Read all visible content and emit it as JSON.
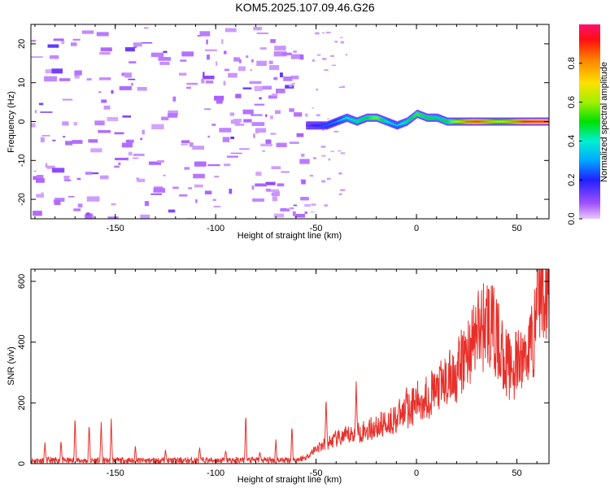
{
  "title": "KOM5.2025.107.09.46.G26",
  "colors": {
    "snr_line": "#e8302a",
    "axis": "#000000"
  },
  "chart_data": [
    {
      "type": "heatmap",
      "name": "spectrogram",
      "xlabel": "Height of straight line (km)",
      "ylabel": "Frequency (Hz)",
      "xlim": [
        -192,
        66
      ],
      "ylim": [
        -25,
        25
      ],
      "xticks": [
        -150,
        -100,
        -50,
        0,
        50
      ],
      "yticks": [
        -20,
        -10,
        0,
        10,
        20
      ],
      "colorbar": {
        "label": "Normalized spectral amplitude",
        "range": [
          0,
          1
        ],
        "ticks": [
          "0.0",
          "0.2",
          "0.4",
          "0.6",
          "0.8"
        ],
        "colormap": "rainbow (magenta-blue-cyan-green-yellow-red)"
      },
      "ridge": {
        "description": "spectral line near 0 Hz",
        "x": [
          -55,
          -50,
          -45,
          -40,
          -35,
          -30,
          -25,
          -20,
          -15,
          -10,
          -5,
          0,
          5,
          10,
          15,
          20,
          25,
          30,
          35,
          40,
          45,
          50,
          55,
          60,
          66
        ],
        "freq": [
          -1,
          -1,
          -1,
          0,
          1,
          0,
          1,
          1,
          0,
          -1,
          0,
          2,
          1,
          1,
          0,
          0,
          0,
          0,
          0,
          0,
          0,
          0,
          0,
          0,
          0
        ],
        "amplitude": [
          0.15,
          0.2,
          0.25,
          0.3,
          0.4,
          0.45,
          0.5,
          0.6,
          0.4,
          0.35,
          0.45,
          0.55,
          0.5,
          0.45,
          0.5,
          0.7,
          0.85,
          0.9,
          0.8,
          0.7,
          0.75,
          0.85,
          0.95,
          1.0,
          1.0
        ]
      }
    },
    {
      "type": "line",
      "name": "snr",
      "xlabel": "Height of straight line (km)",
      "ylabel": "SNR (v/v)",
      "xlim": [
        -192,
        66
      ],
      "ylim": [
        0,
        640
      ],
      "xticks": [
        -150,
        -100,
        -50,
        0,
        50
      ],
      "yticks": [
        0,
        200,
        400,
        600
      ],
      "trend": {
        "x": [
          -192,
          -120,
          -60,
          -55,
          -50,
          -40,
          -30,
          -20,
          -10,
          0,
          10,
          20,
          25,
          30,
          35,
          38,
          42,
          45,
          48,
          52,
          55,
          58,
          59,
          60,
          66
        ],
        "y": [
          10,
          10,
          12,
          20,
          50,
          80,
          100,
          120,
          150,
          200,
          240,
          300,
          360,
          430,
          470,
          440,
          380,
          330,
          310,
          340,
          370,
          420,
          440,
          610,
          610
        ]
      },
      "spikes": [
        {
          "x": -185,
          "y": 70
        },
        {
          "x": -177,
          "y": 80
        },
        {
          "x": -170,
          "y": 160
        },
        {
          "x": -163,
          "y": 135
        },
        {
          "x": -157,
          "y": 140
        },
        {
          "x": -152,
          "y": 150
        },
        {
          "x": -140,
          "y": 60
        },
        {
          "x": -125,
          "y": 50
        },
        {
          "x": -108,
          "y": 55
        },
        {
          "x": -95,
          "y": 45
        },
        {
          "x": -85,
          "y": 170
        },
        {
          "x": -78,
          "y": 40
        },
        {
          "x": -70,
          "y": 80
        },
        {
          "x": -62,
          "y": 130
        },
        {
          "x": -45,
          "y": 220
        },
        {
          "x": -30,
          "y": 275
        },
        {
          "x": -5,
          "y": 260
        }
      ]
    }
  ]
}
